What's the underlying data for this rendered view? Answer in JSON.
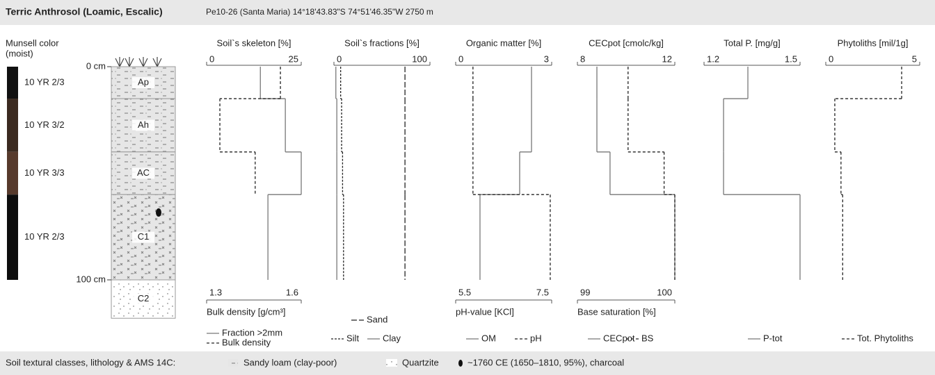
{
  "header": {
    "title": "Terric Anthrosol (Loamic, Escalic)",
    "site": "Pe10-26 (Santa Maria) 14°18'43.83\"S 74°51'46.35\"W 2750 m"
  },
  "profile": {
    "munsell_title": "Munsell color",
    "munsell_subtitle": "(moist)",
    "depth_ticks": [
      {
        "value": 0,
        "label": "0 cm"
      },
      {
        "value": 100,
        "label": "100 cm"
      }
    ],
    "horizons": [
      {
        "name": "Ap",
        "top": 0,
        "bottom": 15,
        "munsell": "10 YR 2/3",
        "color": "#111111"
      },
      {
        "name": "Ah",
        "top": 15,
        "bottom": 40,
        "munsell": "10 YR 3/2",
        "color": "#3b2a20"
      },
      {
        "name": "AC",
        "top": 40,
        "bottom": 60,
        "munsell": "10 YR 3/3",
        "color": "#573a2c"
      },
      {
        "name": "C1",
        "top": 60,
        "bottom": 100,
        "munsell": "10 YR 2/3",
        "color": "#0d0d0d"
      },
      {
        "name": "C2",
        "top": 100,
        "bottom": 118,
        "munsell": null,
        "color": null
      }
    ]
  },
  "chart_data": [
    {
      "type": "step",
      "title": "Soil`s skeleton [%]",
      "depths": [
        0,
        15,
        40,
        60,
        100
      ],
      "xlim": [
        0,
        25
      ],
      "xticks": [
        0,
        25
      ],
      "x2label": "Bulk density [g/cm³]",
      "x2lim": [
        1.3,
        1.6
      ],
      "x2ticks": [
        1.3,
        1.6
      ],
      "series": [
        {
          "name": "Fraction >2mm",
          "color": "#777777",
          "dash": "none",
          "values": [
            14.2,
            20.8,
            25,
            16.2
          ]
        },
        {
          "name": "Bulk density",
          "color": "#222222",
          "dash": "4 3",
          "axis": "x2",
          "values": [
            1.534,
            1.342,
            1.454,
            null
          ]
        }
      ]
    },
    {
      "type": "step",
      "title": "Soil`s fractions [%]",
      "depths": [
        0,
        15,
        40,
        60,
        100
      ],
      "xlim": [
        0,
        100
      ],
      "xticks": [
        0,
        100
      ],
      "series": [
        {
          "name": "Sand",
          "color": "#222222",
          "dash": "8 3",
          "values": [
            74,
            74,
            74,
            74
          ]
        },
        {
          "name": "Silt",
          "color": "#222222",
          "dash": "3 2",
          "values": [
            7,
            8,
            9,
            10
          ]
        },
        {
          "name": "Clay",
          "color": "#777777",
          "dash": "none",
          "values": [
            2,
            3,
            3,
            3
          ]
        }
      ]
    },
    {
      "type": "step",
      "title": "Organic matter [%]",
      "depths": [
        0,
        15,
        40,
        60,
        100
      ],
      "xlim": [
        0,
        3
      ],
      "xticks": [
        0,
        3
      ],
      "x2label": "pH-value [KCl]",
      "x2lim": [
        5.5,
        7.5
      ],
      "x2ticks": [
        5.5,
        7.5
      ],
      "series": [
        {
          "name": "OM",
          "color": "#777777",
          "dash": "none",
          "values": [
            2.37,
            2.37,
            2.0,
            0.76
          ]
        },
        {
          "name": "pH",
          "color": "#222222",
          "dash": "4 3",
          "axis": "x2",
          "values": [
            5.86,
            5.86,
            5.86,
            7.47
          ]
        }
      ]
    },
    {
      "type": "step",
      "title": "CECpot [cmolc/kg]",
      "depths": [
        0,
        15,
        40,
        60,
        100
      ],
      "xlim": [
        8,
        12
      ],
      "xticks": [
        8,
        12
      ],
      "x2label": "Base saturation [%]",
      "x2lim": [
        99,
        100
      ],
      "x2ticks": [
        99,
        100
      ],
      "series": [
        {
          "name": "CECpot",
          "color": "#777777",
          "dash": "none",
          "values": [
            8.8,
            8.8,
            9.34,
            12
          ]
        },
        {
          "name": "BS",
          "color": "#222222",
          "dash": "4 3",
          "axis": "x2",
          "values": [
            99.52,
            99.52,
            99.89,
            100
          ]
        }
      ]
    },
    {
      "type": "step",
      "title": "Total P. [mg/g]",
      "depths": [
        0,
        15,
        40,
        60,
        100
      ],
      "xlim": [
        1.2,
        1.5
      ],
      "xticks": [
        1.2,
        1.5
      ],
      "series": [
        {
          "name": "P-tot",
          "color": "#777777",
          "dash": "none",
          "values": [
            1.337,
            1.261,
            1.261,
            1.5
          ]
        }
      ]
    },
    {
      "type": "step",
      "title": "Phytoliths [mil/1g]",
      "depths": [
        0,
        15,
        40,
        60,
        100
      ],
      "xlim": [
        0,
        5
      ],
      "xticks": [
        0,
        5
      ],
      "series": [
        {
          "name": "Tot. Phytoliths",
          "color": "#222222",
          "dash": "4 3",
          "values": [
            4.04,
            0.48,
            0.81,
            0.9
          ]
        }
      ]
    }
  ],
  "footer": {
    "title": "Soil textural classes, lithology & AMS 14C:",
    "sandy_loam": "Sandy loam (clay-poor)",
    "quartzite": "Quartzite",
    "charcoal": "~1760 CE (1650–1810, 95%), charcoal"
  }
}
